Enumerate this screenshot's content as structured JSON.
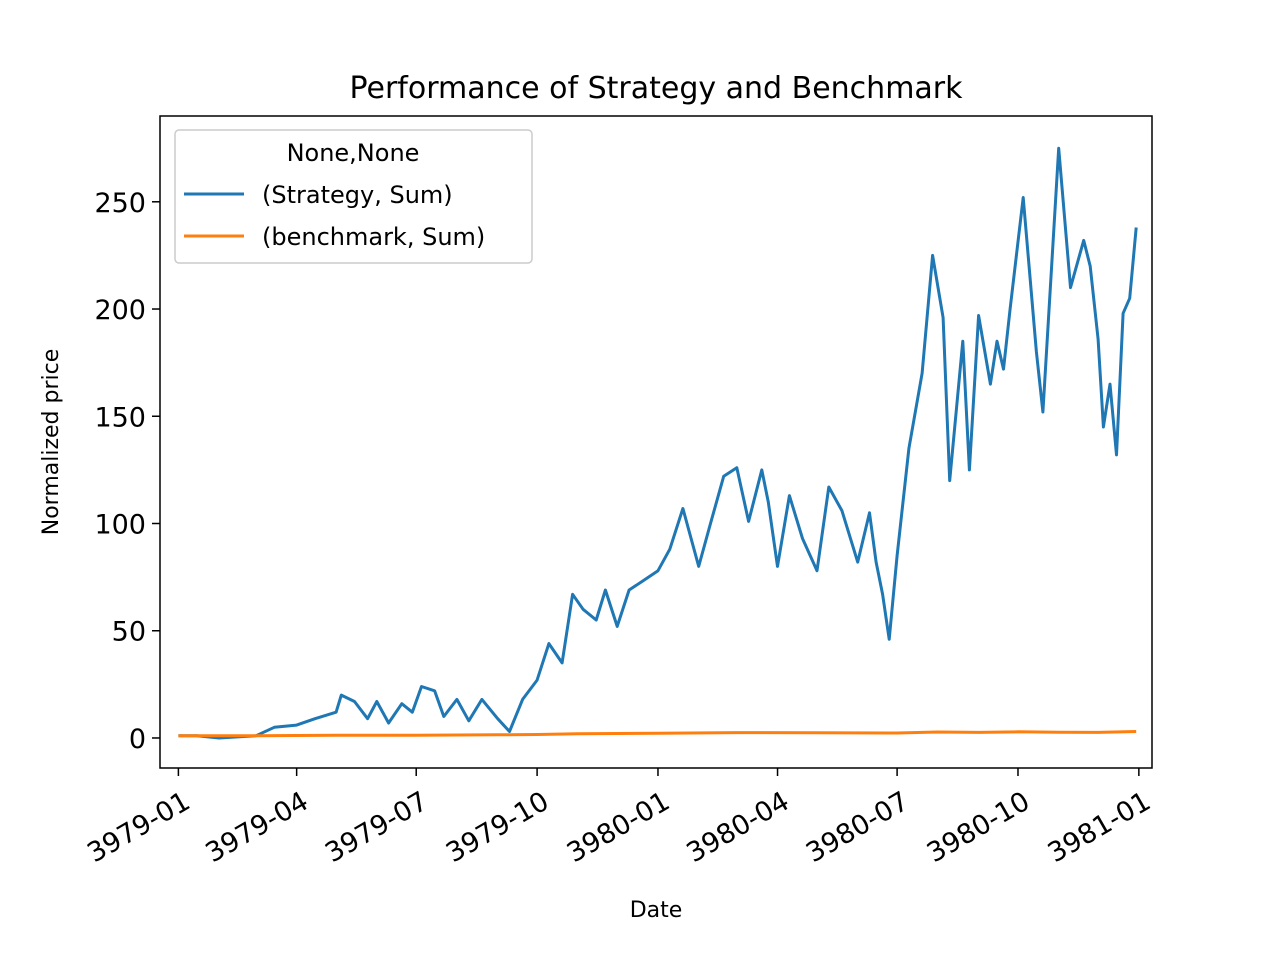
{
  "chart_data": {
    "type": "line",
    "title": "Performance of Strategy and Benchmark",
    "xlabel": "Date",
    "ylabel": "Normalized price",
    "x_range": [
      "3978-12-18",
      "3981-01-11"
    ],
    "ylim": [
      -14,
      290
    ],
    "x_ticks": [
      "3979-01",
      "3979-04",
      "3979-07",
      "3979-10",
      "3980-01",
      "3980-04",
      "3980-07",
      "3980-10",
      "3981-01"
    ],
    "y_ticks": [
      0,
      50,
      100,
      150,
      200,
      250
    ],
    "legend": {
      "title": "None,None",
      "placement": "top-left"
    },
    "grid": false,
    "series": [
      {
        "name": "(Strategy, Sum)",
        "color": "#1f77b4",
        "points": [
          [
            "3979-01-01",
            1
          ],
          [
            "3979-01-15",
            1
          ],
          [
            "3979-02-01",
            0
          ],
          [
            "3979-02-15",
            0.5
          ],
          [
            "3979-03-01",
            1
          ],
          [
            "3979-03-15",
            5
          ],
          [
            "3979-04-01",
            6
          ],
          [
            "3979-04-15",
            9
          ],
          [
            "3979-05-01",
            12
          ],
          [
            "3979-05-05",
            20
          ],
          [
            "3979-05-15",
            17
          ],
          [
            "3979-05-25",
            9
          ],
          [
            "3979-06-01",
            17
          ],
          [
            "3979-06-10",
            7
          ],
          [
            "3979-06-20",
            16
          ],
          [
            "3979-06-28",
            12
          ],
          [
            "3979-07-05",
            24
          ],
          [
            "3979-07-15",
            22
          ],
          [
            "3979-07-22",
            10
          ],
          [
            "3979-08-01",
            18
          ],
          [
            "3979-08-10",
            8
          ],
          [
            "3979-08-20",
            18
          ],
          [
            "3979-09-01",
            9
          ],
          [
            "3979-09-10",
            3
          ],
          [
            "3979-09-20",
            18
          ],
          [
            "3979-10-01",
            27
          ],
          [
            "3979-10-10",
            44
          ],
          [
            "3979-10-20",
            35
          ],
          [
            "3979-10-28",
            67
          ],
          [
            "3979-11-05",
            60
          ],
          [
            "3979-11-15",
            55
          ],
          [
            "3979-11-22",
            69
          ],
          [
            "3979-12-01",
            52
          ],
          [
            "3979-12-10",
            69
          ],
          [
            "3979-12-20",
            73
          ],
          [
            "3980-01-01",
            78
          ],
          [
            "3980-01-10",
            88
          ],
          [
            "3980-01-20",
            107
          ],
          [
            "3980-02-01",
            80
          ],
          [
            "3980-02-10",
            100
          ],
          [
            "3980-02-20",
            122
          ],
          [
            "3980-03-01",
            126
          ],
          [
            "3980-03-10",
            101
          ],
          [
            "3980-03-20",
            125
          ],
          [
            "3980-03-25",
            110
          ],
          [
            "3980-04-01",
            80
          ],
          [
            "3980-04-10",
            113
          ],
          [
            "3980-04-20",
            93
          ],
          [
            "3980-05-01",
            78
          ],
          [
            "3980-05-10",
            117
          ],
          [
            "3980-05-20",
            106
          ],
          [
            "3980-06-01",
            82
          ],
          [
            "3980-06-10",
            105
          ],
          [
            "3980-06-15",
            82
          ],
          [
            "3980-06-20",
            67
          ],
          [
            "3980-06-25",
            46
          ],
          [
            "3980-07-01",
            85
          ],
          [
            "3980-07-10",
            135
          ],
          [
            "3980-07-20",
            170
          ],
          [
            "3980-07-28",
            225
          ],
          [
            "3980-08-05",
            196
          ],
          [
            "3980-08-10",
            120
          ],
          [
            "3980-08-20",
            185
          ],
          [
            "3980-08-25",
            125
          ],
          [
            "3980-09-01",
            197
          ],
          [
            "3980-09-10",
            165
          ],
          [
            "3980-09-15",
            185
          ],
          [
            "3980-09-20",
            172
          ],
          [
            "3980-09-25",
            200
          ],
          [
            "3980-10-05",
            252
          ],
          [
            "3980-10-15",
            180
          ],
          [
            "3980-10-20",
            152
          ],
          [
            "3980-11-01",
            275
          ],
          [
            "3980-11-10",
            210
          ],
          [
            "3980-11-20",
            232
          ],
          [
            "3980-11-25",
            220
          ],
          [
            "3980-12-01",
            186
          ],
          [
            "3980-12-05",
            145
          ],
          [
            "3980-12-10",
            165
          ],
          [
            "3980-12-15",
            132
          ],
          [
            "3980-12-20",
            198
          ],
          [
            "3980-12-25",
            205
          ],
          [
            "3980-12-30",
            238
          ]
        ]
      },
      {
        "name": "(benchmark, Sum)",
        "color": "#ff7f0e",
        "points": [
          [
            "3979-01-01",
            1
          ],
          [
            "3979-03-01",
            1
          ],
          [
            "3979-05-01",
            1.3
          ],
          [
            "3979-07-01",
            1.3
          ],
          [
            "3979-09-01",
            1.5
          ],
          [
            "3979-10-01",
            1.6
          ],
          [
            "3979-11-01",
            2
          ],
          [
            "3980-01-01",
            2.2
          ],
          [
            "3980-03-01",
            2.5
          ],
          [
            "3980-05-01",
            2.4
          ],
          [
            "3980-07-01",
            2.3
          ],
          [
            "3980-08-01",
            2.8
          ],
          [
            "3980-09-01",
            2.6
          ],
          [
            "3980-10-01",
            2.9
          ],
          [
            "3980-11-01",
            2.7
          ],
          [
            "3980-12-01",
            2.6
          ],
          [
            "3980-12-30",
            3
          ]
        ]
      }
    ]
  }
}
